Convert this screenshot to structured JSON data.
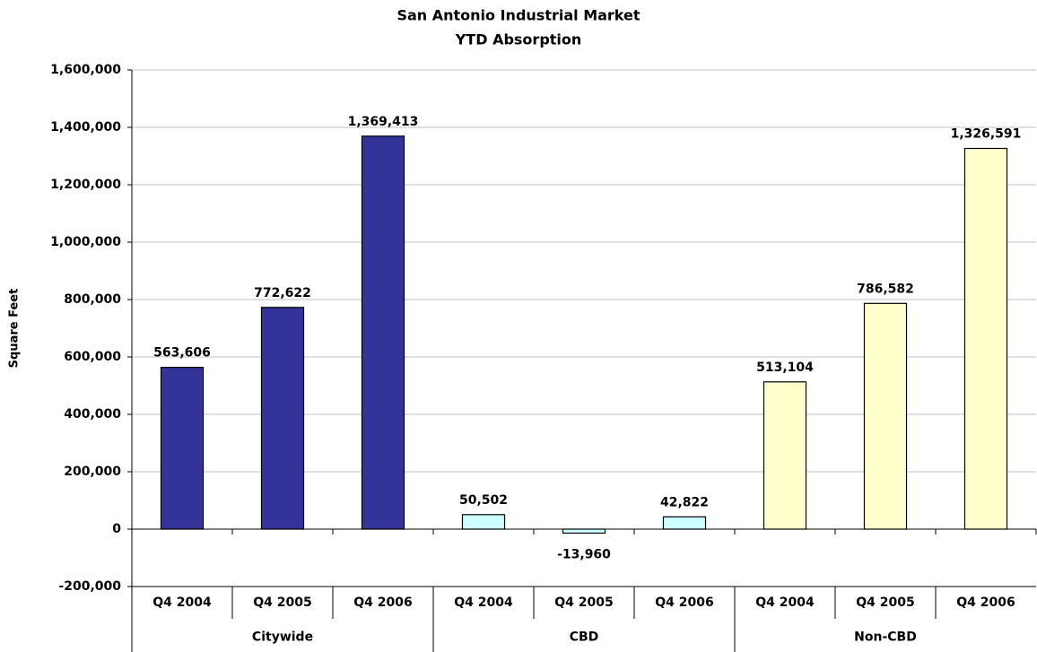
{
  "chart_data": {
    "type": "bar",
    "title": "San Antonio Industrial Market",
    "subtitle": "YTD Absorption",
    "y_label": "Square Feet",
    "groups": [
      {
        "name": "Citywide",
        "color": "#333399",
        "categories": [
          "Q4 2004",
          "Q4 2005",
          "Q4 2006"
        ],
        "values": [
          563606,
          772622,
          1369413
        ],
        "value_labels": [
          "563,606",
          "772,622",
          "1,369,413"
        ]
      },
      {
        "name": "CBD",
        "color": "#ccffff",
        "categories": [
          "Q4 2004",
          "Q4 2005",
          "Q4 2006"
        ],
        "values": [
          50502,
          -13960,
          42822
        ],
        "value_labels": [
          "50,502",
          "-13,960",
          "42,822"
        ]
      },
      {
        "name": "Non-CBD",
        "color": "#ffffcc",
        "categories": [
          "Q4 2004",
          "Q4 2005",
          "Q4 2006"
        ],
        "values": [
          513104,
          786582,
          1326591
        ],
        "value_labels": [
          "513,104",
          "786,582",
          "1,326,591"
        ]
      }
    ],
    "ylim": [
      -200000,
      1600000
    ],
    "yticks": [
      {
        "value": -200000,
        "label": "-200,000"
      },
      0,
      {
        "value": 200000,
        "label": "200,000"
      },
      {
        "value": 400000,
        "label": "400,000"
      },
      {
        "value": 600000,
        "label": "600,000"
      },
      {
        "value": 800000,
        "label": "800,000"
      },
      {
        "value": 1000000,
        "label": "1,000,000"
      },
      {
        "value": 1200000,
        "label": "1,200,000"
      },
      {
        "value": 1400000,
        "label": "1,400,000"
      },
      {
        "value": 1600000,
        "label": "1,600,000"
      }
    ],
    "grid": true
  }
}
